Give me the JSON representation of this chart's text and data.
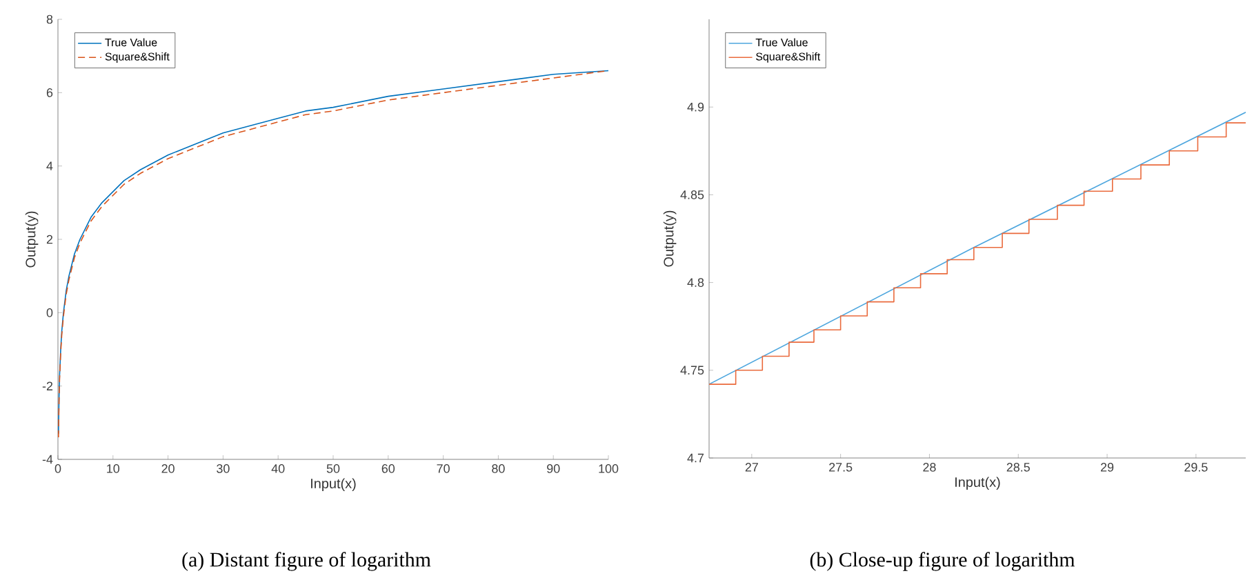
{
  "chart_data": [
    {
      "type": "line",
      "xlabel": "Input(x)",
      "ylabel": "Output(y)",
      "xlim": [
        0,
        100
      ],
      "ylim": [
        -4,
        8
      ],
      "xticks": [
        0,
        10,
        20,
        30,
        40,
        50,
        60,
        70,
        80,
        90,
        100
      ],
      "yticks": [
        -4,
        -2,
        0,
        2,
        4,
        6,
        8
      ],
      "legend": "top left",
      "annotations": [
        "(a) Distant figure of logarithm"
      ],
      "series": [
        {
          "name": "True Value",
          "color": "#0072bd",
          "line_style": "solid",
          "x": [
            0.1,
            0.2,
            0.3,
            0.5,
            0.7,
            1,
            1.5,
            2,
            3,
            4,
            5,
            6,
            8,
            10,
            12,
            15,
            20,
            25,
            30,
            35,
            40,
            45,
            50,
            60,
            70,
            80,
            90,
            100
          ],
          "values": [
            -3.3,
            -2.3,
            -1.7,
            -1.0,
            -0.5,
            0.0,
            0.6,
            1.0,
            1.6,
            2.0,
            2.3,
            2.6,
            3.0,
            3.3,
            3.6,
            3.9,
            4.3,
            4.6,
            4.9,
            5.1,
            5.3,
            5.5,
            5.6,
            5.9,
            6.1,
            6.3,
            6.5,
            6.6
          ]
        },
        {
          "name": "Square&Shift",
          "color": "#d95319",
          "line_style": "dashed",
          "x": [
            0.1,
            0.2,
            0.3,
            0.5,
            0.7,
            1,
            1.5,
            2,
            3,
            4,
            5,
            6,
            8,
            10,
            12,
            15,
            20,
            25,
            30,
            35,
            40,
            45,
            50,
            60,
            70,
            80,
            90,
            100
          ],
          "values": [
            -3.4,
            -2.4,
            -1.8,
            -1.1,
            -0.6,
            -0.1,
            0.5,
            0.9,
            1.5,
            1.9,
            2.2,
            2.5,
            2.9,
            3.2,
            3.5,
            3.8,
            4.2,
            4.5,
            4.8,
            5.0,
            5.2,
            5.4,
            5.5,
            5.8,
            6.0,
            6.2,
            6.4,
            6.6
          ]
        }
      ]
    },
    {
      "type": "line",
      "xlabel": "Input(x)",
      "ylabel": "Output(y)",
      "xlim": [
        26.76,
        29.78
      ],
      "ylim": [
        4.7,
        4.95
      ],
      "xticks": [
        27,
        27.5,
        28,
        28.5,
        29,
        29.5
      ],
      "yticks": [
        4.7,
        4.75,
        4.8,
        4.85,
        4.9
      ],
      "legend": "top left",
      "annotations": [
        "(b) Close-up figure of logarithm"
      ],
      "series": [
        {
          "name": "True Value",
          "color": "#4da6de",
          "line_style": "solid",
          "x": [
            26.76,
            28.25,
            29.78
          ],
          "values": [
            4.742,
            4.82,
            4.897
          ]
        },
        {
          "name": "Square&Shift",
          "color": "#ea6a3c",
          "type": "step",
          "line_style": "solid",
          "x": [
            26.76,
            26.91,
            27.06,
            27.21,
            27.35,
            27.5,
            27.65,
            27.8,
            27.95,
            28.1,
            28.25,
            28.41,
            28.56,
            28.72,
            28.87,
            29.03,
            29.19,
            29.35,
            29.51,
            29.67,
            29.78
          ],
          "values": [
            4.742,
            4.75,
            4.758,
            4.766,
            4.773,
            4.781,
            4.789,
            4.797,
            4.805,
            4.813,
            4.82,
            4.828,
            4.836,
            4.844,
            4.852,
            4.859,
            4.867,
            4.875,
            4.883,
            4.891,
            4.891
          ]
        }
      ]
    }
  ]
}
